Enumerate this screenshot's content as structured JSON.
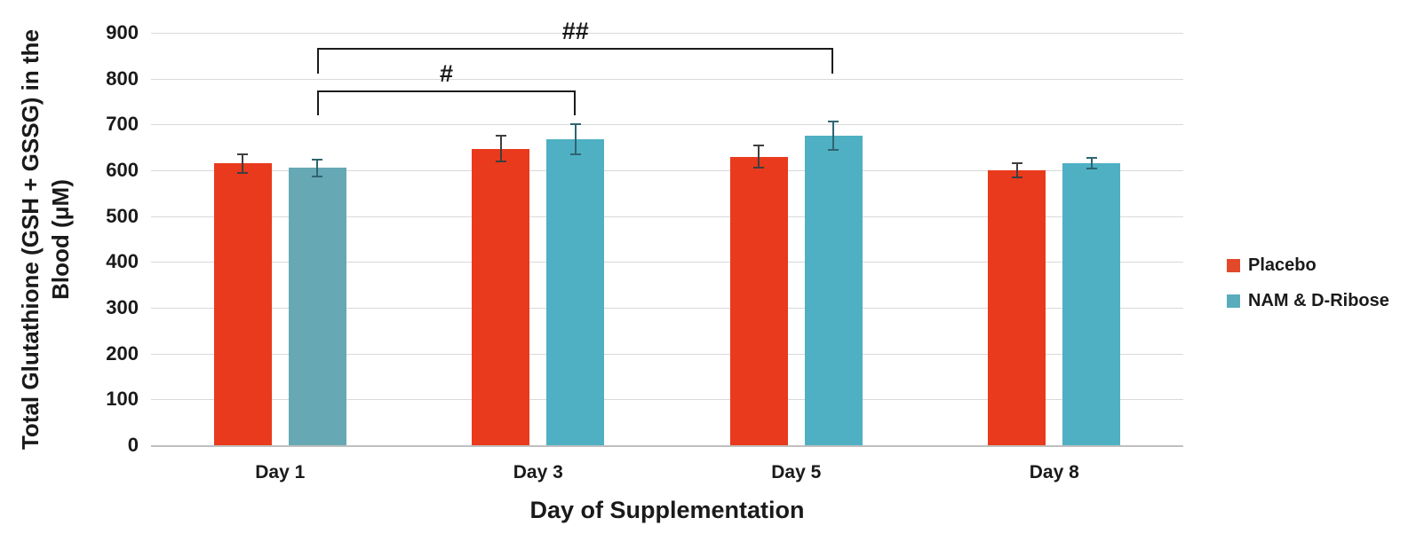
{
  "chart_data": {
    "type": "bar",
    "title": "",
    "xlabel": "Day of Supplementation",
    "ylabel": "Total Glutathione (GSH + GSSG) in the\nBlood (μM)",
    "categories": [
      "Day 1",
      "Day 3",
      "Day 5",
      "Day 8"
    ],
    "series": [
      {
        "name": "Placebo",
        "color": "#E93A1D",
        "swatch_color": "#E2492B",
        "error_color": "#3F3F3F",
        "values": [
          615,
          647,
          630,
          600
        ],
        "errors": [
          22,
          30,
          27,
          18
        ]
      },
      {
        "name": "NAM & D-Ribose",
        "color": "#4FB0C3",
        "swatch_color": "#5AACBC",
        "error_color": "#2E6570",
        "values": [
          605,
          667,
          676,
          615
        ],
        "errors": [
          20,
          35,
          33,
          14
        ],
        "bar_colors": [
          "#66A9B4",
          "#4FB0C3",
          "#4FB0C3",
          "#4FB0C3"
        ]
      }
    ],
    "ylim": [
      0,
      900
    ],
    "yticks": [
      0,
      100,
      200,
      300,
      400,
      500,
      600,
      700,
      800,
      900
    ],
    "grid": true,
    "legend_position": "right",
    "annotations": [
      {
        "label": "#",
        "from_category": "Day 1",
        "to_category": "Day 3",
        "series": "NAM & D-Ribose",
        "y_value": 775,
        "drop": 55
      },
      {
        "label": "##",
        "from_category": "Day 1",
        "to_category": "Day 5",
        "series": "NAM & D-Ribose",
        "y_value": 868,
        "drop": 58
      }
    ]
  },
  "colors": {
    "gridline": "#D9D9D9",
    "axis_line": "#BFBFBF",
    "bracket": "#1B1B1B",
    "background": "#FFFFFF",
    "text": "#1A1A1A"
  }
}
